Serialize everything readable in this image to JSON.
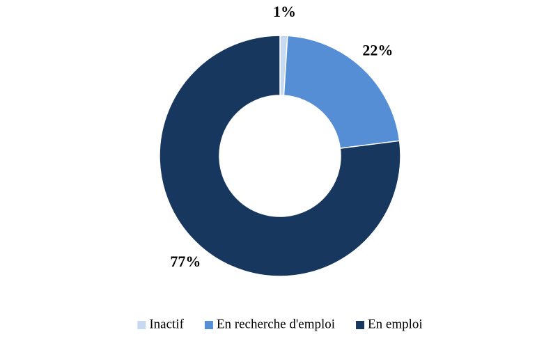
{
  "chart_data": {
    "type": "donut",
    "categories": [
      "Inactif",
      "En recherche d'emploi",
      "En emploi"
    ],
    "values": [
      1,
      22,
      77
    ],
    "value_labels": [
      "1%",
      "22%",
      "77%"
    ],
    "colors": [
      "#c6d9f0",
      "#558ed5",
      "#17375e"
    ],
    "legend": "bottom"
  }
}
